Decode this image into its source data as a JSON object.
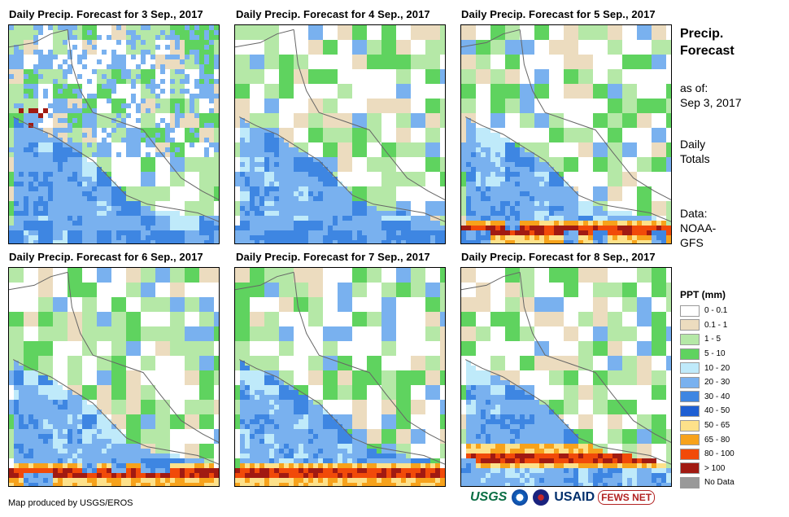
{
  "panels": [
    {
      "title": "Daily Precip. Forecast for 3 Sep., 2017"
    },
    {
      "title": "Daily Precip. Forecast for 4 Sep., 2017"
    },
    {
      "title": "Daily Precip. Forecast for 5 Sep., 2017"
    },
    {
      "title": "Daily Precip. Forecast for 6 Sep., 2017"
    },
    {
      "title": "Daily Precip. Forecast for 7 Sep., 2017"
    },
    {
      "title": "Daily Precip. Forecast for 8 Sep., 2017"
    }
  ],
  "sidebar": {
    "title_line1": "Precip.",
    "title_line2": "Forecast",
    "asof_label": "as of:",
    "asof_date": "Sep 3, 2017",
    "daily_line1": "Daily",
    "daily_line2": "Totals",
    "data_line1": "Data:",
    "data_line2": "NOAA-",
    "data_line3": "GFS"
  },
  "legend": {
    "title": "PPT (mm)",
    "items": [
      {
        "label": "0 - 0.1",
        "color": "#ffffff"
      },
      {
        "label": "0.1 - 1",
        "color": "#ecdcbf"
      },
      {
        "label": "1 - 5",
        "color": "#b5e8a7"
      },
      {
        "label": "5 - 10",
        "color": "#5fd35f"
      },
      {
        "label": "10 - 20",
        "color": "#bfeafa"
      },
      {
        "label": "20 - 30",
        "color": "#79b1ef"
      },
      {
        "label": "30 - 40",
        "color": "#3e86e2"
      },
      {
        "label": "40 - 50",
        "color": "#1e5fd3"
      },
      {
        "label": "50 - 65",
        "color": "#fde18a"
      },
      {
        "label": "65 - 80",
        "color": "#f7a21b"
      },
      {
        "label": "80 - 100",
        "color": "#f14a09"
      },
      {
        "label": "> 100",
        "color": "#a11a12"
      },
      {
        "label": "No Data",
        "color": "#999999"
      }
    ]
  },
  "footer": {
    "credit": "Map produced by USGS/EROS",
    "logo_usgs": "USGS",
    "logo_usaid": "USAID",
    "logo_fews": "FEWS NET"
  }
}
